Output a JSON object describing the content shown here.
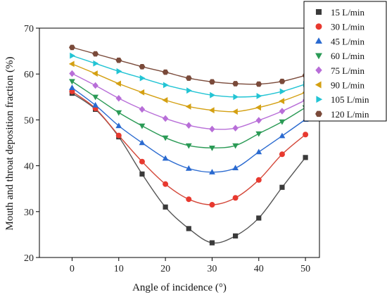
{
  "chart_data": {
    "type": "scatter",
    "xlabel": "Angle of incidence  (°)",
    "ylabel": "Mouth and throat deposition fraction (%)",
    "xlim": [
      -7,
      53
    ],
    "ylim": [
      20,
      70
    ],
    "x_ticks": [
      0,
      10,
      20,
      30,
      40,
      50
    ],
    "y_ticks": [
      20,
      30,
      40,
      50,
      60,
      70
    ],
    "grid": false,
    "legend_position": "top-right",
    "x": [
      0,
      5,
      10,
      15,
      20,
      25,
      30,
      35,
      40,
      45,
      50
    ],
    "series": [
      {
        "name": "15 L/min",
        "marker": "square",
        "color": "#3a3a3a",
        "line_color": "#555555",
        "values": [
          55.8,
          52.3,
          46.3,
          38.2,
          31.0,
          26.3,
          23.2,
          24.7,
          28.6,
          35.3,
          41.8
        ]
      },
      {
        "name": "30 L/min",
        "marker": "circle",
        "color": "#e8392f",
        "line_color": "#d4483a",
        "values": [
          56.2,
          52.5,
          46.6,
          40.9,
          36.0,
          32.7,
          31.5,
          33.0,
          36.9,
          42.5,
          46.8
        ]
      },
      {
        "name": "45 L/min",
        "marker": "triangle-up",
        "color": "#2a6ad0",
        "line_color": "#2a6ad0",
        "values": [
          57.0,
          53.2,
          48.7,
          45.0,
          41.6,
          39.4,
          38.6,
          39.5,
          43.0,
          46.5,
          50.1
        ]
      },
      {
        "name": "60 L/min",
        "marker": "triangle-down",
        "color": "#2a9a55",
        "line_color": "#2a9a55",
        "values": [
          58.4,
          55.0,
          51.6,
          48.7,
          46.1,
          44.4,
          43.9,
          44.4,
          47.0,
          49.6,
          52.7
        ]
      },
      {
        "name": "75 L/min",
        "marker": "diamond",
        "color": "#b86ed8",
        "line_color": "#b86ed8",
        "values": [
          60.1,
          57.5,
          54.7,
          52.3,
          50.3,
          48.8,
          48.0,
          48.2,
          49.9,
          51.9,
          54.3
        ]
      },
      {
        "name": "90 L/min",
        "marker": "triangle-left",
        "color": "#d4a012",
        "line_color": "#d4a012",
        "values": [
          62.2,
          60.1,
          57.9,
          56.0,
          54.3,
          52.9,
          52.1,
          51.8,
          52.7,
          54.1,
          56.0
        ]
      },
      {
        "name": "105 L/min",
        "marker": "triangle-right",
        "color": "#22c4d4",
        "line_color": "#22c4d4",
        "values": [
          64.0,
          62.3,
          60.6,
          59.1,
          57.6,
          56.4,
          55.4,
          55.0,
          55.2,
          56.2,
          57.8
        ]
      },
      {
        "name": "120 L/min",
        "marker": "hexagon",
        "color": "#7a4a3a",
        "line_color": "#7a4a3a",
        "values": [
          65.8,
          64.4,
          63.0,
          61.6,
          60.4,
          59.1,
          58.3,
          57.9,
          57.8,
          58.4,
          59.7
        ]
      }
    ]
  }
}
